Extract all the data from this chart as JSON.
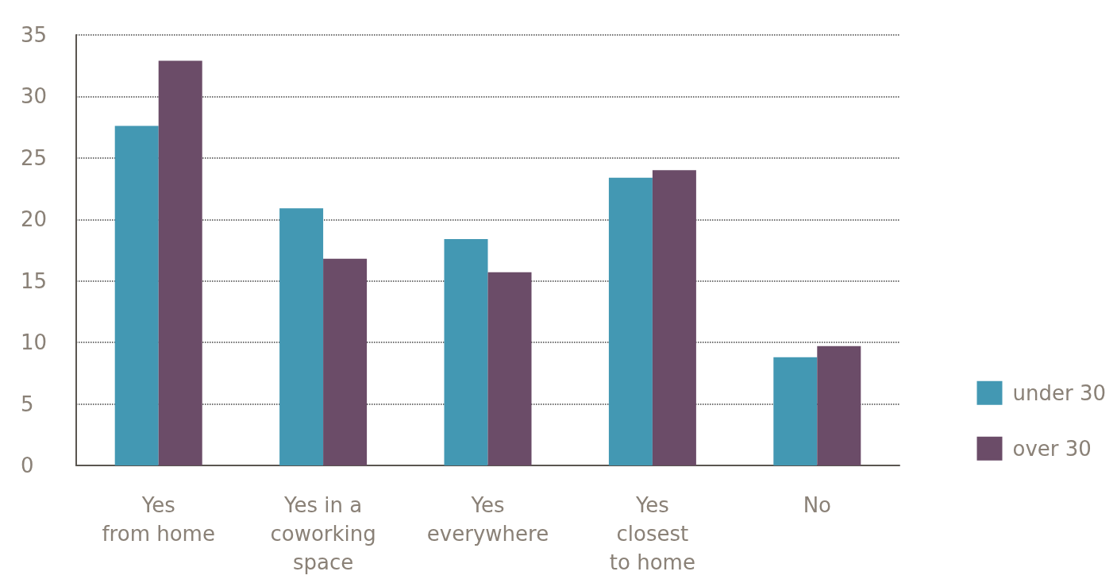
{
  "chart_data": {
    "type": "bar",
    "categories": [
      "Yes\nfrom home",
      "Yes in a\ncoworking\nspace",
      "Yes\neverywhere",
      "Yes\nclosest\nto home",
      "No"
    ],
    "series": [
      {
        "name": "under 30",
        "color": "#4398b3",
        "values": [
          27.6,
          20.9,
          18.4,
          23.4,
          8.8
        ]
      },
      {
        "name": "over 30",
        "color": "#6b4c68",
        "values": [
          32.9,
          16.8,
          15.7,
          24.0,
          9.7
        ]
      }
    ],
    "ylim": [
      0,
      35
    ],
    "yticks": [
      0,
      5,
      10,
      15,
      20,
      25,
      30,
      35
    ],
    "grid": "y",
    "legend": "right"
  }
}
